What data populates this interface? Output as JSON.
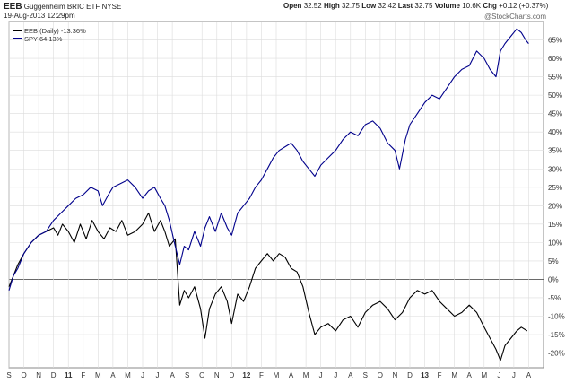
{
  "header": {
    "symbol": "EEB",
    "name": "Guggenheim BRIC ETF",
    "exchange": "NYSE",
    "date": "19-Aug-2013 12:29pm",
    "watermark": "@StockCharts.com",
    "quote": [
      {
        "label": "Open",
        "value": "32.52"
      },
      {
        "label": "High",
        "value": "32.75"
      },
      {
        "label": "Low",
        "value": "32.42"
      },
      {
        "label": "Last",
        "value": "32.75"
      },
      {
        "label": "Volume",
        "value": "10.6K"
      },
      {
        "label": "Chg",
        "value": "+0.12 (+0.37%)"
      }
    ]
  },
  "colors": {
    "eeb": "#000000",
    "spy": "#00008b",
    "grid": "#dcdcdc",
    "zero": "#555555"
  },
  "chart_data": {
    "type": "line",
    "ylabel_unit": "%",
    "ylim": [
      -24,
      70
    ],
    "yticks": [
      -20,
      -15,
      -10,
      -5,
      0,
      5,
      10,
      15,
      20,
      25,
      30,
      35,
      40,
      45,
      50,
      55,
      60,
      65
    ],
    "xlim": [
      0,
      36
    ],
    "xticks": [
      {
        "x": 0,
        "label": "S"
      },
      {
        "x": 1,
        "label": "O"
      },
      {
        "x": 2,
        "label": "N"
      },
      {
        "x": 3,
        "label": "D"
      },
      {
        "x": 4,
        "label": "11"
      },
      {
        "x": 5,
        "label": "F"
      },
      {
        "x": 6,
        "label": "M"
      },
      {
        "x": 7,
        "label": "A"
      },
      {
        "x": 8,
        "label": "M"
      },
      {
        "x": 9,
        "label": "J"
      },
      {
        "x": 10,
        "label": "J"
      },
      {
        "x": 11,
        "label": "A"
      },
      {
        "x": 12,
        "label": "S"
      },
      {
        "x": 13,
        "label": "O"
      },
      {
        "x": 14,
        "label": "N"
      },
      {
        "x": 15,
        "label": "D"
      },
      {
        "x": 16,
        "label": "12"
      },
      {
        "x": 17,
        "label": "F"
      },
      {
        "x": 18,
        "label": "M"
      },
      {
        "x": 19,
        "label": "A"
      },
      {
        "x": 20,
        "label": "M"
      },
      {
        "x": 21,
        "label": "J"
      },
      {
        "x": 22,
        "label": "J"
      },
      {
        "x": 23,
        "label": "A"
      },
      {
        "x": 24,
        "label": "S"
      },
      {
        "x": 25,
        "label": "O"
      },
      {
        "x": 26,
        "label": "N"
      },
      {
        "x": 27,
        "label": "D"
      },
      {
        "x": 28,
        "label": "13"
      },
      {
        "x": 29,
        "label": "F"
      },
      {
        "x": 30,
        "label": "M"
      },
      {
        "x": 31,
        "label": "A"
      },
      {
        "x": 32,
        "label": "M"
      },
      {
        "x": 33,
        "label": "J"
      },
      {
        "x": 34,
        "label": "J"
      },
      {
        "x": 35,
        "label": "A"
      }
    ],
    "series": [
      {
        "name": "EEB (Daily) -13.36%",
        "key": "eeb",
        "points": [
          [
            0,
            -2
          ],
          [
            0.3,
            1
          ],
          [
            0.6,
            4
          ],
          [
            1,
            7
          ],
          [
            1.5,
            10
          ],
          [
            2,
            12
          ],
          [
            2.5,
            13
          ],
          [
            3,
            14
          ],
          [
            3.3,
            12
          ],
          [
            3.6,
            15
          ],
          [
            4,
            13
          ],
          [
            4.4,
            10
          ],
          [
            4.8,
            15
          ],
          [
            5.2,
            11
          ],
          [
            5.6,
            16
          ],
          [
            6,
            13
          ],
          [
            6.4,
            11
          ],
          [
            6.8,
            14
          ],
          [
            7.2,
            13
          ],
          [
            7.6,
            16
          ],
          [
            8,
            12
          ],
          [
            8.5,
            13
          ],
          [
            9,
            15
          ],
          [
            9.4,
            18
          ],
          [
            9.8,
            13
          ],
          [
            10.2,
            16
          ],
          [
            10.5,
            13
          ],
          [
            10.8,
            9
          ],
          [
            11.2,
            11
          ],
          [
            11.5,
            -7
          ],
          [
            11.8,
            -3
          ],
          [
            12.1,
            -5
          ],
          [
            12.5,
            -2
          ],
          [
            12.9,
            -8
          ],
          [
            13.2,
            -16
          ],
          [
            13.5,
            -8
          ],
          [
            13.9,
            -4
          ],
          [
            14.3,
            -2
          ],
          [
            14.7,
            -6
          ],
          [
            15,
            -12
          ],
          [
            15.4,
            -4
          ],
          [
            15.8,
            -6
          ],
          [
            16.2,
            -2
          ],
          [
            16.6,
            3
          ],
          [
            17,
            5
          ],
          [
            17.4,
            7
          ],
          [
            17.8,
            5
          ],
          [
            18.2,
            7
          ],
          [
            18.6,
            6
          ],
          [
            19,
            3
          ],
          [
            19.4,
            2
          ],
          [
            19.8,
            -2
          ],
          [
            20.2,
            -9
          ],
          [
            20.6,
            -15
          ],
          [
            21,
            -13
          ],
          [
            21.5,
            -12
          ],
          [
            22,
            -14
          ],
          [
            22.5,
            -11
          ],
          [
            23,
            -10
          ],
          [
            23.5,
            -13
          ],
          [
            24,
            -9
          ],
          [
            24.5,
            -7
          ],
          [
            25,
            -6
          ],
          [
            25.5,
            -8
          ],
          [
            26,
            -11
          ],
          [
            26.5,
            -9
          ],
          [
            27,
            -5
          ],
          [
            27.5,
            -3
          ],
          [
            28,
            -4
          ],
          [
            28.5,
            -3
          ],
          [
            29,
            -6
          ],
          [
            29.5,
            -8
          ],
          [
            30,
            -10
          ],
          [
            30.5,
            -9
          ],
          [
            31,
            -7
          ],
          [
            31.5,
            -9
          ],
          [
            32,
            -13
          ],
          [
            32.4,
            -16
          ],
          [
            32.8,
            -19
          ],
          [
            33.1,
            -22
          ],
          [
            33.4,
            -18
          ],
          [
            33.8,
            -16
          ],
          [
            34.2,
            -14
          ],
          [
            34.5,
            -13
          ],
          [
            34.9,
            -14
          ]
        ]
      },
      {
        "name": "SPY 64.13%",
        "key": "spy",
        "points": [
          [
            0,
            -3
          ],
          [
            0.3,
            1
          ],
          [
            0.6,
            3
          ],
          [
            1,
            7
          ],
          [
            1.5,
            10
          ],
          [
            2,
            12
          ],
          [
            2.5,
            13
          ],
          [
            3,
            16
          ],
          [
            3.5,
            18
          ],
          [
            4,
            20
          ],
          [
            4.5,
            22
          ],
          [
            5,
            23
          ],
          [
            5.5,
            25
          ],
          [
            6,
            24
          ],
          [
            6.3,
            20
          ],
          [
            6.7,
            23
          ],
          [
            7,
            25
          ],
          [
            7.5,
            26
          ],
          [
            8,
            27
          ],
          [
            8.5,
            25
          ],
          [
            9,
            22
          ],
          [
            9.4,
            24
          ],
          [
            9.8,
            25
          ],
          [
            10.2,
            22
          ],
          [
            10.5,
            20
          ],
          [
            10.8,
            16
          ],
          [
            11.2,
            9
          ],
          [
            11.5,
            4
          ],
          [
            11.8,
            9
          ],
          [
            12.1,
            8
          ],
          [
            12.5,
            13
          ],
          [
            12.9,
            9
          ],
          [
            13.2,
            14
          ],
          [
            13.5,
            17
          ],
          [
            13.9,
            13
          ],
          [
            14.3,
            18
          ],
          [
            14.7,
            14
          ],
          [
            15,
            12
          ],
          [
            15.4,
            18
          ],
          [
            15.8,
            20
          ],
          [
            16.2,
            22
          ],
          [
            16.6,
            25
          ],
          [
            17,
            27
          ],
          [
            17.4,
            30
          ],
          [
            17.8,
            33
          ],
          [
            18.2,
            35
          ],
          [
            18.6,
            36
          ],
          [
            19,
            37
          ],
          [
            19.4,
            35
          ],
          [
            19.8,
            32
          ],
          [
            20.2,
            30
          ],
          [
            20.6,
            28
          ],
          [
            21,
            31
          ],
          [
            21.5,
            33
          ],
          [
            22,
            35
          ],
          [
            22.5,
            38
          ],
          [
            23,
            40
          ],
          [
            23.5,
            39
          ],
          [
            24,
            42
          ],
          [
            24.5,
            43
          ],
          [
            25,
            41
          ],
          [
            25.5,
            37
          ],
          [
            26,
            35
          ],
          [
            26.3,
            30
          ],
          [
            26.7,
            38
          ],
          [
            27,
            42
          ],
          [
            27.5,
            45
          ],
          [
            28,
            48
          ],
          [
            28.5,
            50
          ],
          [
            29,
            49
          ],
          [
            29.5,
            52
          ],
          [
            30,
            55
          ],
          [
            30.5,
            57
          ],
          [
            31,
            58
          ],
          [
            31.5,
            62
          ],
          [
            32,
            60
          ],
          [
            32.4,
            57
          ],
          [
            32.8,
            55
          ],
          [
            33.1,
            62
          ],
          [
            33.4,
            64
          ],
          [
            33.8,
            66
          ],
          [
            34.2,
            68
          ],
          [
            34.5,
            67
          ],
          [
            34.8,
            65
          ],
          [
            35,
            64
          ]
        ]
      }
    ]
  }
}
